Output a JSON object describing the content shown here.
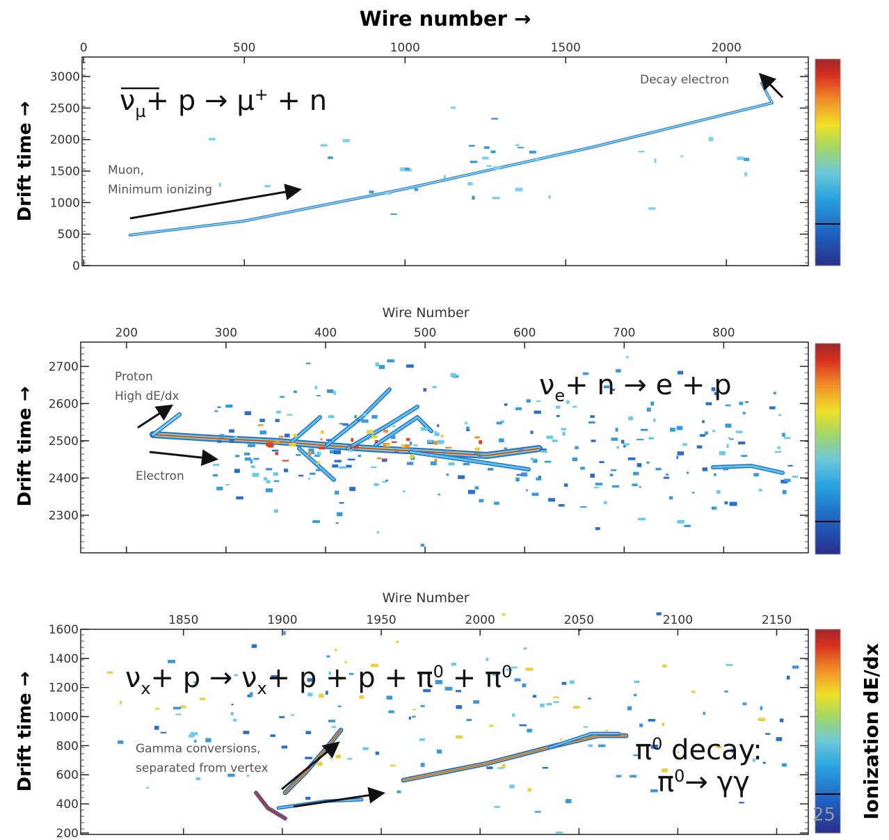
{
  "chart_data": [
    {
      "type": "event-display",
      "title": "Wire number →",
      "y_label": "Drift time →",
      "xlim": [
        -5,
        2255
      ],
      "xticks": [
        0,
        500,
        1000,
        1500,
        2000
      ],
      "ylim": [
        0,
        3310
      ],
      "yticks": [
        0,
        500,
        1000,
        1500,
        2000,
        2500,
        3000
      ],
      "reaction": [
        "ν",
        "μ",
        "+ p → μ",
        "+",
        " + n"
      ],
      "annotations": [
        "Decay electron",
        "Muon,",
        "Minimum ionizing"
      ]
    },
    {
      "type": "event-display",
      "title": "Wire Number",
      "y_label": "Drift time →",
      "xlim": [
        154,
        885
      ],
      "xticks": [
        200,
        300,
        400,
        500,
        600,
        700,
        800
      ],
      "ylim": [
        2199,
        2765
      ],
      "yticks": [
        2300,
        2400,
        2500,
        2600,
        2700
      ],
      "reaction": [
        "ν",
        "e",
        "+ n → e + p"
      ],
      "annotations": [
        "Proton",
        "High dE/dx",
        "Electron"
      ]
    },
    {
      "type": "event-display",
      "title": "Wire Number",
      "y_label": "Drift time →",
      "xlim": [
        1798,
        2166
      ],
      "xticks": [
        1850,
        1900,
        1950,
        2000,
        2050,
        2100,
        2150
      ],
      "ylim": [
        190,
        1600
      ],
      "yticks": [
        200,
        400,
        600,
        800,
        1000,
        1200,
        1400,
        1600
      ],
      "reaction": [
        "ν",
        "x",
        "+ p → ν",
        "x",
        "+ p + p + π",
        "0",
        " + π",
        "0"
      ],
      "annotations": [
        "Gamma conversions,",
        "separated from vertex"
      ],
      "decay": [
        "π",
        "0",
        " decay:"
      ],
      "decay_products": [
        "π",
        "0",
        "→ γγ"
      ]
    }
  ],
  "colorbar_label": "Ionization dE/dx",
  "page_number": "25"
}
